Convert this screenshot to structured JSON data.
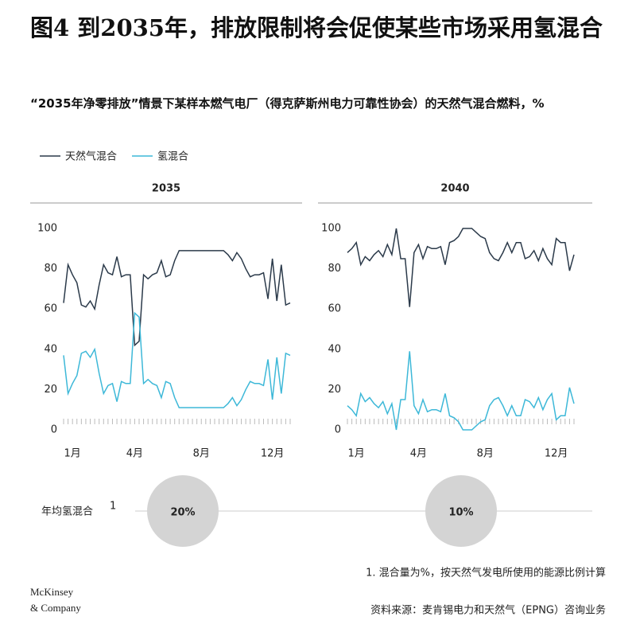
{
  "title": "图4 到2035年，排放限制将会促使某些市场采用氢混合",
  "subtitle": "“2035年净零排放”情景下某样本燃气电厂（得克萨斯州电力可靠性协会）的天然气混合燃料，%",
  "annual_label": "年均氢混合",
  "annual_marker": "1",
  "footnote": "1. 混合量为%，按天然气发电所使用的能源比例计算",
  "source": "资料来源：麦肯锡电力和天然气（EPNG）咨询业务",
  "logo": [
    "McKinsey",
    "& Company"
  ],
  "chart_data": [
    {
      "type": "line",
      "title": "2035",
      "categories": [
        null,
        null,
        "1月",
        null,
        null,
        null,
        null,
        null,
        null,
        null,
        null,
        null,
        null,
        null,
        null,
        null,
        "4月",
        null,
        null,
        null,
        null,
        null,
        null,
        null,
        null,
        null,
        null,
        null,
        null,
        null,
        null,
        "8月",
        null,
        null,
        null,
        null,
        null,
        null,
        null,
        null,
        null,
        null,
        null,
        null,
        null,
        null,
        null,
        "12月",
        null,
        null,
        null,
        null
      ],
      "ylim": [
        0,
        100
      ],
      "yticks": [
        0,
        20,
        40,
        60,
        80,
        100
      ],
      "annual": {
        "value": 20,
        "label": "20%"
      },
      "series": [
        {
          "name": "天然气混合",
          "color": "#2b3a4a",
          "values": [
            63,
            82,
            77,
            73,
            62,
            61,
            64,
            60,
            72,
            82,
            78,
            77,
            86,
            76,
            77,
            77,
            42,
            44,
            77,
            75,
            77,
            78,
            84,
            76,
            77,
            84,
            89,
            89,
            89,
            89,
            89,
            89,
            89,
            89,
            89,
            89,
            89,
            87,
            84,
            88,
            85,
            80,
            76,
            77,
            77,
            78,
            65,
            85,
            64,
            82,
            62,
            63
          ]
        },
        {
          "name": "氢混合",
          "color": "#3db8d8",
          "values": [
            37,
            18,
            23,
            27,
            38,
            39,
            36,
            40,
            28,
            18,
            22,
            23,
            14,
            24,
            23,
            23,
            58,
            56,
            23,
            25,
            23,
            22,
            16,
            24,
            23,
            16,
            11,
            11,
            11,
            11,
            11,
            11,
            11,
            11,
            11,
            11,
            11,
            13,
            16,
            12,
            15,
            20,
            24,
            23,
            23,
            22,
            35,
            15,
            36,
            18,
            38,
            37
          ]
        }
      ]
    },
    {
      "type": "line",
      "title": "2040",
      "categories": [
        null,
        null,
        "1月",
        null,
        null,
        null,
        null,
        null,
        null,
        null,
        null,
        null,
        null,
        null,
        null,
        null,
        "4月",
        null,
        null,
        null,
        null,
        null,
        null,
        null,
        null,
        null,
        null,
        null,
        null,
        null,
        null,
        "8月",
        null,
        null,
        null,
        null,
        null,
        null,
        null,
        null,
        null,
        null,
        null,
        null,
        null,
        null,
        null,
        "12月",
        null,
        null,
        null,
        null
      ],
      "ylim": [
        0,
        100
      ],
      "yticks": [
        0,
        20,
        40,
        60,
        80,
        100
      ],
      "annual": {
        "value": 10,
        "label": "10%"
      },
      "series": [
        {
          "name": "天然气混合",
          "color": "#2b3a4a",
          "values": [
            88,
            90,
            93,
            82,
            86,
            84,
            87,
            89,
            86,
            92,
            87,
            100,
            85,
            85,
            61,
            88,
            92,
            85,
            91,
            90,
            90,
            91,
            82,
            93,
            94,
            96,
            100,
            100,
            100,
            98,
            96,
            95,
            88,
            85,
            84,
            88,
            93,
            88,
            93,
            93,
            85,
            86,
            89,
            84,
            90,
            85,
            82,
            95,
            93,
            93,
            79,
            87
          ]
        },
        {
          "name": "氢混合",
          "color": "#3db8d8",
          "values": [
            12,
            10,
            7,
            18,
            14,
            16,
            13,
            11,
            14,
            8,
            13,
            0,
            15,
            15,
            39,
            12,
            8,
            15,
            9,
            10,
            10,
            9,
            18,
            7,
            6,
            4,
            0,
            0,
            0,
            2,
            4,
            5,
            12,
            15,
            16,
            12,
            7,
            12,
            7,
            7,
            15,
            14,
            11,
            16,
            10,
            15,
            18,
            5,
            7,
            7,
            21,
            13
          ]
        }
      ]
    }
  ]
}
